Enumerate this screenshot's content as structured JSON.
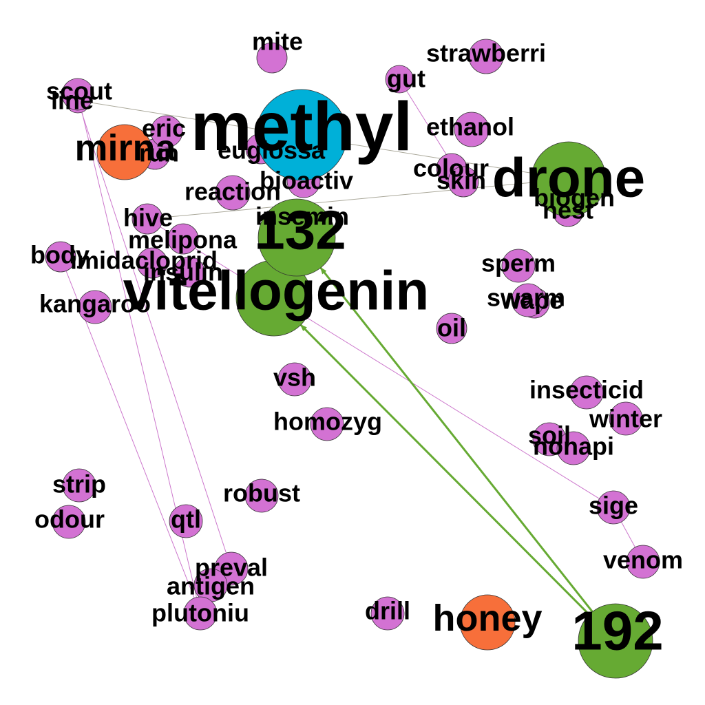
{
  "colors": {
    "pink": "#d372d3",
    "cyan": "#00b0d8",
    "green": "#66aa33",
    "orange": "#f76f3a",
    "edge_pink": "#cc77cc",
    "edge_grey": "#aaa89a",
    "edge_green": "#66aa33"
  },
  "nodes": [
    {
      "id": "mite",
      "label": "mite",
      "color": "pink",
      "size": "small"
    },
    {
      "id": "strawberri",
      "label": "strawberri",
      "color": "pink",
      "size": "small"
    },
    {
      "id": "gut",
      "label": "gut",
      "color": "pink",
      "size": "small"
    },
    {
      "id": "scout",
      "label": "scout",
      "color": "pink",
      "size": "small"
    },
    {
      "id": "line",
      "label": "line",
      "color": "pink",
      "size": "small"
    },
    {
      "id": "methyl",
      "label": "methyl",
      "color": "cyan",
      "size": "large"
    },
    {
      "id": "ethanol",
      "label": "ethanol",
      "color": "pink",
      "size": "small"
    },
    {
      "id": "mirna",
      "label": "mirna",
      "color": "orange",
      "size": "medium"
    },
    {
      "id": "eric",
      "label": "eric",
      "color": "pink",
      "size": "small"
    },
    {
      "id": "run",
      "label": "run",
      "color": "pink",
      "size": "small"
    },
    {
      "id": "euglossa",
      "label": "euglossa",
      "color": "pink",
      "size": "small"
    },
    {
      "id": "colour",
      "label": "colour",
      "color": "pink",
      "size": "small"
    },
    {
      "id": "skin",
      "label": "skin",
      "color": "pink",
      "size": "small"
    },
    {
      "id": "drone",
      "label": "drone",
      "color": "green",
      "size": "large"
    },
    {
      "id": "bioactiv",
      "label": "bioactiv",
      "color": "pink",
      "size": "small"
    },
    {
      "id": "reaction",
      "label": "reaction",
      "color": "pink",
      "size": "small"
    },
    {
      "id": "biogen",
      "label": "biogen",
      "color": "pink",
      "size": "small"
    },
    {
      "id": "nest",
      "label": "nest",
      "color": "pink",
      "size": "small"
    },
    {
      "id": "insemin",
      "label": "insemin",
      "color": "pink",
      "size": "small"
    },
    {
      "id": "hive",
      "label": "hive",
      "color": "pink",
      "size": "small"
    },
    {
      "id": "n132",
      "label": "132",
      "color": "green",
      "size": "large"
    },
    {
      "id": "melipona",
      "label": "melipona",
      "color": "pink",
      "size": "small"
    },
    {
      "id": "body",
      "label": "body",
      "color": "pink",
      "size": "small"
    },
    {
      "id": "imidacloprid",
      "label": "imidacloprid",
      "color": "pink",
      "size": "small"
    },
    {
      "id": "insulin",
      "label": "insulin",
      "color": "pink",
      "size": "small"
    },
    {
      "id": "sperm",
      "label": "sperm",
      "color": "pink",
      "size": "small"
    },
    {
      "id": "vitellogenin",
      "label": "vitellogenin",
      "color": "green",
      "size": "large"
    },
    {
      "id": "swarm",
      "label": "swarm",
      "color": "pink",
      "size": "small"
    },
    {
      "id": "wape",
      "label": "wape",
      "color": "pink",
      "size": "small"
    },
    {
      "id": "kangaroo",
      "label": "kangaroo",
      "color": "pink",
      "size": "small"
    },
    {
      "id": "oil",
      "label": "oil",
      "color": "pink",
      "size": "small"
    },
    {
      "id": "vsh",
      "label": "vsh",
      "color": "pink",
      "size": "small"
    },
    {
      "id": "insecticid",
      "label": "insecticid",
      "color": "pink",
      "size": "small"
    },
    {
      "id": "winter",
      "label": "winter",
      "color": "pink",
      "size": "small"
    },
    {
      "id": "homozyg",
      "label": "homozyg",
      "color": "pink",
      "size": "small"
    },
    {
      "id": "soil",
      "label": "soil",
      "color": "pink",
      "size": "small"
    },
    {
      "id": "nonapi",
      "label": "nonapi",
      "color": "pink",
      "size": "small"
    },
    {
      "id": "strip",
      "label": "strip",
      "color": "pink",
      "size": "small"
    },
    {
      "id": "robust",
      "label": "robust",
      "color": "pink",
      "size": "small"
    },
    {
      "id": "sige",
      "label": "sige",
      "color": "pink",
      "size": "small"
    },
    {
      "id": "odour",
      "label": "odour",
      "color": "pink",
      "size": "small"
    },
    {
      "id": "qtl",
      "label": "qtl",
      "color": "pink",
      "size": "small"
    },
    {
      "id": "venom",
      "label": "venom",
      "color": "pink",
      "size": "small"
    },
    {
      "id": "preval",
      "label": "preval",
      "color": "pink",
      "size": "small"
    },
    {
      "id": "antigen",
      "label": "antigen",
      "color": "pink",
      "size": "small"
    },
    {
      "id": "drill",
      "label": "drill",
      "color": "pink",
      "size": "small"
    },
    {
      "id": "honey",
      "label": "honey",
      "color": "orange",
      "size": "medium"
    },
    {
      "id": "n192",
      "label": "192",
      "color": "green",
      "size": "large"
    },
    {
      "id": "plutoniu",
      "label": "plutoniu",
      "color": "pink",
      "size": "small"
    }
  ],
  "edges": [
    {
      "from": "line",
      "to": "drone",
      "color": "edge_grey",
      "directed": false
    },
    {
      "from": "hive",
      "to": "drone",
      "color": "edge_grey",
      "directed": false
    },
    {
      "from": "gut",
      "to": "skin",
      "color": "edge_pink",
      "directed": false
    },
    {
      "from": "line",
      "to": "preval",
      "color": "edge_pink",
      "directed": false
    },
    {
      "from": "scout",
      "to": "plutoniu",
      "color": "edge_pink",
      "directed": false
    },
    {
      "from": "body",
      "to": "plutoniu",
      "color": "edge_pink",
      "directed": false
    },
    {
      "from": "hive",
      "to": "sige",
      "color": "edge_pink",
      "directed": false
    },
    {
      "from": "sige",
      "to": "venom",
      "color": "edge_pink",
      "directed": false
    },
    {
      "from": "n192",
      "to": "n132",
      "color": "edge_green",
      "directed": true
    },
    {
      "from": "n192",
      "to": "vitellogenin",
      "color": "edge_green",
      "directed": true
    }
  ]
}
